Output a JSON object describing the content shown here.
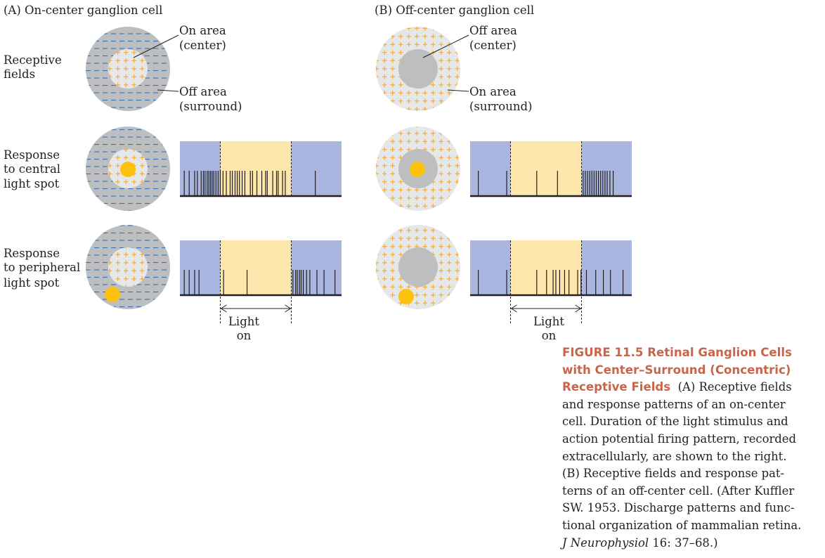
{
  "panels": {
    "a": {
      "title": "(A)  On-center ganglion cell"
    },
    "b": {
      "title": "(B)  Off-center ganglion cell"
    }
  },
  "rows": {
    "receptive": [
      "Receptive",
      "fields"
    ],
    "central": [
      "Response",
      "to central",
      "light spot"
    ],
    "peripheral": [
      "Response",
      "to peripheral",
      "light spot"
    ]
  },
  "callouts": {
    "a_center": [
      "On area",
      "(center)"
    ],
    "a_surround": [
      "Off area",
      "(surround)"
    ],
    "b_center": [
      "Off area",
      "(center)"
    ],
    "b_surround": [
      "On area",
      "(surround)"
    ]
  },
  "light_label": [
    "Light",
    "on"
  ],
  "colors": {
    "dark_disk": "#bcbec0",
    "light_disk": "#e6e7e8",
    "minus": "#3a6fb7",
    "plus": "#f7a823",
    "spot": "#fdc20d",
    "trace_off": "#a9b7e0",
    "trace_on": "#fde7ad",
    "baseline": "#231f20"
  },
  "spike_trains": {
    "a_central": [
      0.08,
      0.17,
      0.27,
      0.32,
      0.39,
      0.43,
      0.46,
      0.5,
      0.53,
      0.56,
      0.59,
      0.62,
      0.66,
      0.7,
      0.74,
      0.79,
      0.85,
      0.92,
      0.96,
      1.01,
      1.05,
      1.09,
      1.14,
      1.19,
      1.29,
      1.33,
      1.41,
      1.5,
      1.57,
      1.6,
      1.7,
      1.77,
      1.8,
      1.88,
      1.93,
      2.48,
      3.14,
      3.65
    ],
    "a_peripheral": [
      0.08,
      0.17,
      0.27,
      0.35,
      0.8,
      1.23,
      2.07,
      2.12,
      2.15,
      2.19,
      2.22,
      2.26,
      2.32,
      2.38,
      2.51,
      2.64,
      2.84,
      3.03,
      3.25,
      3.41
    ],
    "b_central": [
      0.15,
      0.67,
      1.22,
      1.6,
      2.07,
      2.11,
      2.15,
      2.19,
      2.23,
      2.27,
      2.31,
      2.35,
      2.39,
      2.43,
      2.47,
      2.51,
      2.56,
      2.62
    ],
    "b_peripheral": [
      0.15,
      0.67,
      1.22,
      1.4,
      1.52,
      1.57,
      1.64,
      1.73,
      1.81,
      1.97,
      2.03,
      2.13,
      2.3,
      2.44,
      2.57,
      2.8,
      3.03,
      3.27
    ]
  },
  "stimulus": {
    "on": 0.74,
    "off": 2.04,
    "end": 2.96
  },
  "caption": {
    "figure": "FIGURE 11.5  Retinal Ganglion Cells",
    "title_2": "with Center–Surround (Concentric)",
    "title_3": "Receptive Fields",
    "body_1": "(A) Receptive fields",
    "body_2": "and response patterns of an on-center",
    "body_3": "cell. Duration of the light stimulus and",
    "body_4": "action potential firing pattern, recorded",
    "body_5": "extracellularly, are shown to the right.",
    "body_6": "(B) Receptive fields and response pat-",
    "body_7": "terns of an off-center cell. (After Kuffler",
    "body_8": "SW. 1953. Discharge patterns and func-",
    "body_9": "tional organization of mammalian retina.",
    "journal": "J Neurophysiol",
    "cite_end": " 16: 37–68.)"
  }
}
